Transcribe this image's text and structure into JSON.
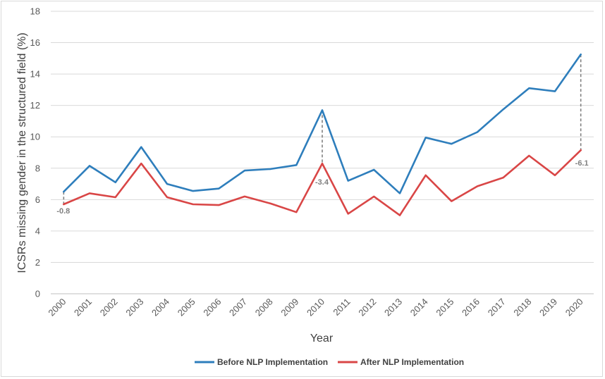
{
  "chart_data": {
    "type": "line",
    "title": "",
    "xlabel": "Year",
    "ylabel": "ICSRs missing gender in the structured field (%)",
    "ylim": [
      0,
      18
    ],
    "yticks": [
      0,
      2,
      4,
      6,
      8,
      10,
      12,
      14,
      16,
      18
    ],
    "grid": true,
    "legend_position": "bottom",
    "categories": [
      "2000",
      "2001",
      "2002",
      "2003",
      "2004",
      "2005",
      "2006",
      "2007",
      "2008",
      "2009",
      "2010",
      "2011",
      "2012",
      "2013",
      "2014",
      "2015",
      "2016",
      "2017",
      "2018",
      "2019",
      "2020"
    ],
    "series": [
      {
        "name": "Before NLP Implementation",
        "color": "#2e7ebc",
        "values": [
          6.5,
          8.15,
          7.1,
          9.35,
          7.0,
          6.55,
          6.7,
          7.85,
          7.95,
          8.2,
          11.7,
          7.2,
          7.9,
          6.4,
          9.95,
          9.55,
          10.3,
          11.75,
          13.1,
          12.9,
          15.25
        ]
      },
      {
        "name": "After NLP Implementation",
        "color": "#d94646",
        "values": [
          5.7,
          6.4,
          6.15,
          8.3,
          6.15,
          5.7,
          5.65,
          6.2,
          5.75,
          5.2,
          8.3,
          5.1,
          6.2,
          5.0,
          7.55,
          5.9,
          6.85,
          7.4,
          8.8,
          7.55,
          9.15
        ]
      }
    ],
    "annotations": [
      {
        "year": "2000",
        "label": "-0.8"
      },
      {
        "year": "2010",
        "label": "-3.4"
      },
      {
        "year": "2020",
        "label": "-6.1"
      }
    ]
  }
}
